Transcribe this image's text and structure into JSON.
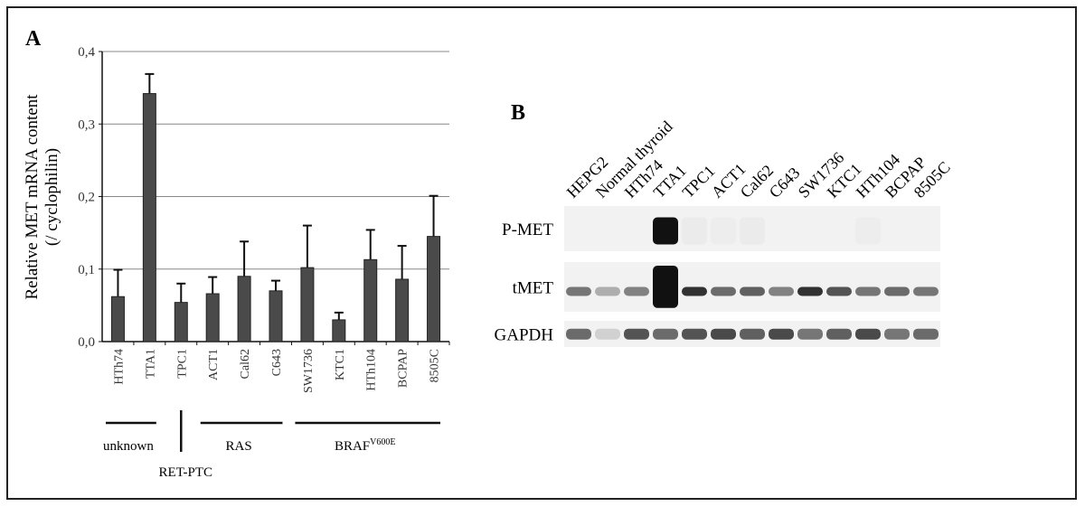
{
  "panel_a": {
    "letter": "A"
  },
  "panel_b": {
    "letter": "B"
  },
  "chart_data": [
    {
      "type": "bar",
      "ylabel": "Relative MET mRNA content",
      "ylabel2": "(/ cyclophilin)",
      "xlabel": "",
      "ylim": [
        0,
        0.4
      ],
      "yticks": [
        "0,0",
        "0,1",
        "0,2",
        "0,3",
        "0,4"
      ],
      "grid": true,
      "categories": [
        "HTh74",
        "TTA1",
        "TPC1",
        "ACT1",
        "Cal62",
        "C643",
        "SW1736",
        "KTC1",
        "HTh104",
        "BCPAP",
        "8505C"
      ],
      "values": [
        0.062,
        0.342,
        0.054,
        0.066,
        0.09,
        0.07,
        0.102,
        0.03,
        0.113,
        0.086,
        0.145
      ],
      "error_upper": [
        0.099,
        0.369,
        0.08,
        0.089,
        0.138,
        0.084,
        0.16,
        0.04,
        0.154,
        0.132,
        0.201
      ],
      "bar_color": "#4a4a4a",
      "groups": [
        {
          "label": "unknown",
          "sup": "",
          "from": 0,
          "to": 1
        },
        {
          "label": "RET-PTC",
          "sup": "",
          "from": 2,
          "to": 2
        },
        {
          "label": "RAS",
          "sup": "",
          "from": 3,
          "to": 5
        },
        {
          "label": "BRAF",
          "sup": "V600E",
          "from": 6,
          "to": 10
        }
      ]
    }
  ],
  "blot": {
    "lanes": [
      "HEPG2",
      "Normal thyroid",
      "HTh74",
      "TTA1",
      "TPC1",
      "ACT1",
      "Cal62",
      "C643",
      "SW1736",
      "KTC1",
      "HTh104",
      "BCPAP",
      "8505C"
    ],
    "rows": [
      {
        "label": "P-MET",
        "intensity": [
          0,
          0,
          0,
          1,
          0.03,
          0.02,
          0.03,
          0,
          0,
          0,
          0.02,
          0,
          0
        ]
      },
      {
        "label": "tMET",
        "intensity": [
          0.55,
          0.3,
          0.5,
          1,
          0.85,
          0.6,
          0.65,
          0.5,
          0.85,
          0.7,
          0.55,
          0.6,
          0.55
        ]
      },
      {
        "label": "GAPDH",
        "intensity": [
          0.6,
          0.15,
          0.7,
          0.6,
          0.7,
          0.75,
          0.65,
          0.75,
          0.55,
          0.65,
          0.75,
          0.55,
          0.6
        ]
      }
    ]
  }
}
